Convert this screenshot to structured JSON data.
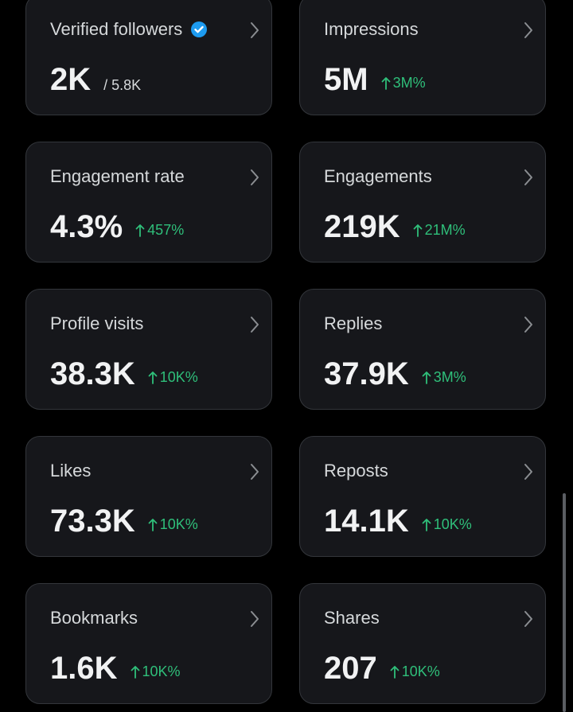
{
  "cards": [
    {
      "label": "Verified followers",
      "value": "2K",
      "total": "/ 5.8K"
    },
    {
      "label": "Impressions",
      "value": "5M",
      "change": "3M%"
    },
    {
      "label": "Engagement rate",
      "value": "4.3%",
      "change": "457%"
    },
    {
      "label": "Engagements",
      "value": "219K",
      "change": "21M%"
    },
    {
      "label": "Profile visits",
      "value": "38.3K",
      "change": "10K%"
    },
    {
      "label": "Replies",
      "value": "37.9K",
      "change": "3M%"
    },
    {
      "label": "Likes",
      "value": "73.3K",
      "change": "10K%"
    },
    {
      "label": "Reposts",
      "value": "14.1K",
      "change": "10K%"
    },
    {
      "label": "Bookmarks",
      "value": "1.6K",
      "change": "10K%"
    },
    {
      "label": "Shares",
      "value": "207",
      "change": "10K%"
    }
  ]
}
